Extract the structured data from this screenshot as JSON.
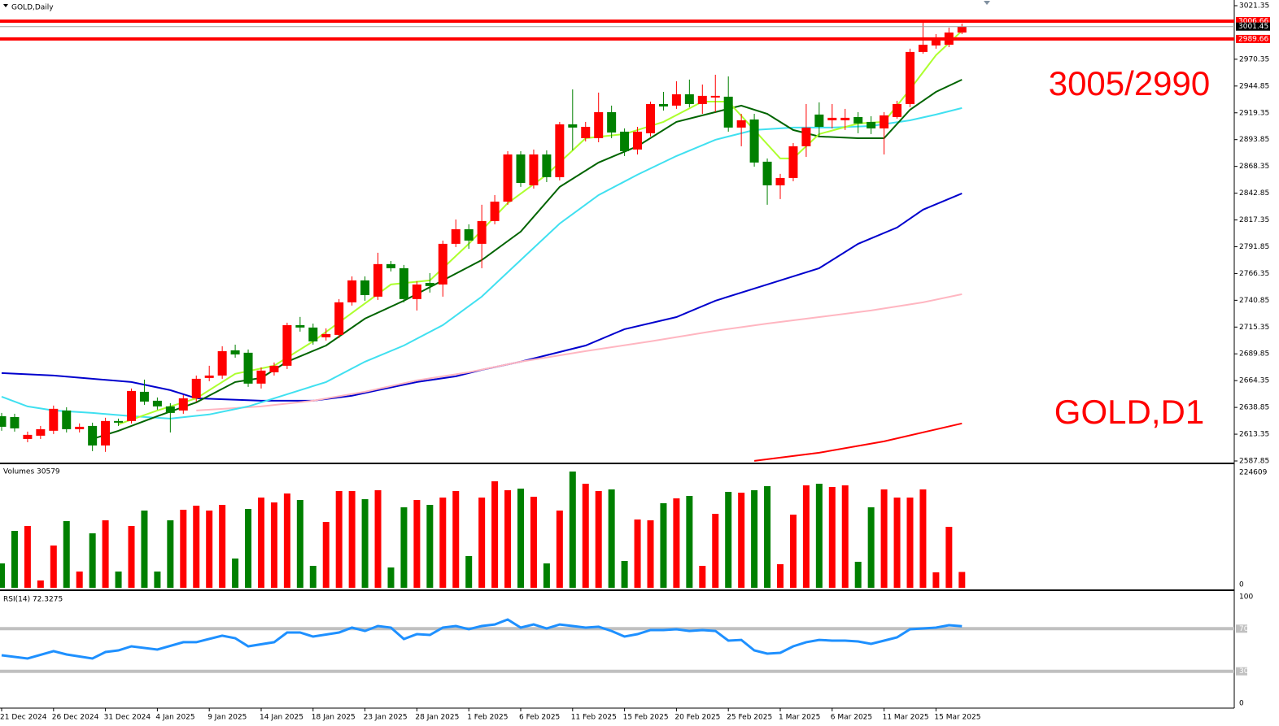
{
  "chart_data": [
    {
      "type": "candlestick",
      "title": "GOLD,Daily",
      "categories": [
        "21 Dec 2024",
        null,
        null,
        null,
        "26 Dec 2024",
        null,
        null,
        null,
        "31 Dec 2024",
        null,
        null,
        null,
        "4 Jan 2025",
        null,
        null,
        null,
        "9 Jan 2025",
        null,
        null,
        null,
        "14 Jan 2025",
        null,
        null,
        null,
        "18 Jan 2025",
        null,
        null,
        null,
        "23 Jan 2025",
        null,
        null,
        null,
        "28 Jan 2025",
        null,
        null,
        null,
        "1 Feb 2025",
        null,
        null,
        null,
        "6 Feb 2025",
        null,
        null,
        null,
        "11 Feb 2025",
        null,
        null,
        null,
        "15 Feb 2025",
        null,
        null,
        null,
        "20 Feb 2025",
        null,
        null,
        null,
        "25 Feb 2025",
        null,
        null,
        null,
        "1 Mar 2025",
        null,
        null,
        null,
        "6 Mar 2025",
        null,
        null,
        null,
        "11 Mar 2025",
        null,
        null,
        null,
        "15 Mar 2025",
        null,
        null
      ],
      "open": [
        2630.5,
        2629.7,
        2608.8,
        2611.9,
        2616.6,
        2635.9,
        2618.1,
        2621.2,
        2602.6,
        2625.9,
        2625.9,
        2653.7,
        2645.2,
        2639.8,
        2635.9,
        2647.5,
        2666.9,
        2669.2,
        2693.2,
        2690.9,
        2661.5,
        2672.3,
        2678.5,
        2717.2,
        2714.9,
        2705.6,
        2707.9,
        2738.9,
        2759.8,
        2744.3,
        2775.3,
        2771.4,
        2742.0,
        2757.4,
        2755.9,
        2794.6,
        2808.5,
        2794.6,
        2816.3,
        2834.8,
        2879.7,
        2850.3,
        2879.7,
        2858.1,
        2908.4,
        2895.2,
        2895.2,
        2920.0,
        2901.4,
        2884.4,
        2899.9,
        2927.7,
        2926.2,
        2937.0,
        2927.7,
        2933.9,
        2934.7,
        2905.3,
        2913.0,
        2872.8,
        2850.3,
        2857.3,
        2887.5,
        2917.7,
        2912.2,
        2912.2,
        2915.3,
        2910.7,
        2904.5,
        2915.3,
        2927.7,
        2977.3,
        2983.5,
        2984.2,
        2995.8
      ],
      "high": [
        2633.6,
        2632.8,
        2615.8,
        2621.2,
        2640.6,
        2639.0,
        2623.6,
        2624.3,
        2629.0,
        2628.2,
        2656.8,
        2665.3,
        2648.3,
        2642.9,
        2650.6,
        2669.2,
        2678.5,
        2697.1,
        2698.6,
        2694.0,
        2677.0,
        2681.6,
        2719.5,
        2725.0,
        2718.7,
        2714.1,
        2742.0,
        2763.6,
        2763.6,
        2786.1,
        2778.3,
        2774.5,
        2759.0,
        2766.7,
        2797.7,
        2817.8,
        2813.2,
        2831.8,
        2841.0,
        2882.8,
        2882.8,
        2884.4,
        2883.6,
        2910.7,
        2941.7,
        2910.7,
        2938.6,
        2926.2,
        2904.5,
        2906.0,
        2930.0,
        2939.3,
        2949.4,
        2951.0,
        2946.3,
        2955.6,
        2954.0,
        2918.4,
        2918.4,
        2875.9,
        2861.2,
        2890.6,
        2927.7,
        2929.3,
        2927.7,
        2923.1,
        2920.0,
        2916.1,
        2920.0,
        2930.8,
        2980.4,
        3005.1,
        2994.3,
        3000.5,
        3004.4
      ],
      "low": [
        2616.6,
        2615.8,
        2605.7,
        2608.8,
        2613.5,
        2615.0,
        2615.0,
        2597.2,
        2596.5,
        2621.2,
        2623.6,
        2641.3,
        2636.7,
        2615.0,
        2632.8,
        2644.4,
        2663.8,
        2666.1,
        2686.2,
        2658.4,
        2656.8,
        2669.2,
        2675.4,
        2711.0,
        2698.6,
        2702.5,
        2704.8,
        2735.8,
        2740.4,
        2741.2,
        2768.3,
        2738.9,
        2731.1,
        2748.2,
        2744.3,
        2791.5,
        2789.9,
        2771.4,
        2813.2,
        2831.8,
        2848.8,
        2847.2,
        2853.4,
        2855.0,
        2883.6,
        2892.1,
        2891.3,
        2895.2,
        2878.2,
        2879.7,
        2896.8,
        2921.5,
        2923.1,
        2924.6,
        2918.4,
        2920.0,
        2901.4,
        2887.5,
        2868.1,
        2831.8,
        2837.2,
        2854.2,
        2877.4,
        2896.8,
        2904.5,
        2903.0,
        2899.9,
        2899.1,
        2879.7,
        2913.8,
        2924.6,
        2975.7,
        2980.4,
        2981.9,
        2994.3
      ],
      "close": [
        2620.4,
        2618.9,
        2612.7,
        2618.1,
        2637.5,
        2618.1,
        2620.4,
        2602.6,
        2625.9,
        2624.3,
        2654.5,
        2644.4,
        2639.8,
        2633.6,
        2647.5,
        2666.1,
        2669.2,
        2692.4,
        2689.3,
        2661.5,
        2673.9,
        2678.5,
        2717.2,
        2714.9,
        2701.7,
        2708.7,
        2738.9,
        2759.8,
        2745.8,
        2775.3,
        2771.4,
        2742.0,
        2755.9,
        2754.4,
        2794.6,
        2808.5,
        2797.7,
        2816.3,
        2834.8,
        2879.7,
        2852.6,
        2879.7,
        2858.1,
        2908.4,
        2905.3,
        2906.0,
        2920.0,
        2900.6,
        2882.8,
        2901.4,
        2927.7,
        2925.4,
        2937.0,
        2927.7,
        2935.5,
        2935.5,
        2905.3,
        2912.2,
        2872.0,
        2850.3,
        2857.3,
        2887.5,
        2905.3,
        2906.0,
        2914.6,
        2914.6,
        2909.2,
        2904.5,
        2916.9,
        2927.7,
        2977.3,
        2984.2,
        2989.6,
        2995.8,
        3001.45
      ],
      "up_color": "#ff0000",
      "down_color": "#008000",
      "ylim": [
        2587.85,
        3021.35
      ],
      "yticks": [
        2587.85,
        2613.35,
        2638.85,
        2664.35,
        2689.85,
        2715.35,
        2740.85,
        2766.35,
        2791.85,
        2817.35,
        2842.85,
        2868.35,
        2893.85,
        2919.35,
        2944.85,
        2970.35,
        3021.35
      ],
      "series": [
        {
          "color": "#0000cd",
          "x": [
            0,
            4,
            10,
            13,
            15,
            20,
            24,
            27,
            29,
            32,
            35,
            37,
            40,
            45,
            48,
            52,
            55,
            59,
            63,
            66,
            69,
            71,
            74
          ],
          "values": [
            2671.5,
            2669.2,
            2663.0,
            2655.3,
            2647.5,
            2645.2,
            2645.2,
            2649.9,
            2655.3,
            2663.0,
            2668.4,
            2674.6,
            2682.4,
            2697.8,
            2713.3,
            2724.9,
            2740.4,
            2755.9,
            2771.4,
            2794.6,
            2810.1,
            2827.1,
            2842.6
          ]
        },
        {
          "color": "#ffb6c1",
          "x": [
            15,
            20,
            24,
            28,
            32,
            36,
            40,
            45,
            50,
            55,
            59,
            63,
            67,
            71,
            74
          ],
          "values": [
            2635.9,
            2639.8,
            2645.2,
            2653.7,
            2664.6,
            2672.3,
            2682.4,
            2692.4,
            2701.7,
            2711.8,
            2718.7,
            2724.9,
            2731.1,
            2738.9,
            2746.6
          ]
        },
        {
          "color": "#ff0000",
          "x": [
            58,
            63,
            68,
            74
          ],
          "values": [
            2587.9,
            2595.7,
            2606.5,
            2623.6
          ]
        },
        {
          "color": "#40e0f0",
          "x": [
            0,
            2,
            4,
            7,
            10,
            13,
            16,
            19,
            22,
            25,
            28,
            31,
            34,
            37,
            40,
            43,
            46,
            49,
            52,
            55,
            58,
            61,
            64,
            67,
            70,
            72,
            74
          ],
          "values": [
            2649.1,
            2639.8,
            2635.9,
            2633.6,
            2630.5,
            2628.2,
            2632.1,
            2639.8,
            2651.4,
            2663.0,
            2682.4,
            2697.8,
            2717.2,
            2744.3,
            2779.1,
            2813.9,
            2841.0,
            2860.4,
            2878.2,
            2893.7,
            2903.0,
            2905.3,
            2905.3,
            2906.8,
            2912.2,
            2917.7,
            2923.9
          ]
        },
        {
          "color": "#006400",
          "x": [
            7,
            9,
            12,
            15,
            18,
            20,
            22,
            25,
            28,
            31,
            34,
            37,
            40,
            43,
            46,
            49,
            52,
            55,
            57,
            59,
            61,
            63,
            66,
            68,
            70,
            72,
            74
          ],
          "values": [
            2608.8,
            2616.6,
            2630.5,
            2643.7,
            2663.0,
            2666.9,
            2682.4,
            2697.8,
            2723.4,
            2740.4,
            2759.8,
            2779.1,
            2806.2,
            2848.8,
            2872.0,
            2887.5,
            2910.7,
            2920.0,
            2926.2,
            2918.4,
            2903.0,
            2896.8,
            2895.2,
            2895.2,
            2922.3,
            2939.3,
            2950.9
          ]
        },
        {
          "color": "#adff2f",
          "x": [
            9,
            12,
            15,
            18,
            21,
            24,
            27,
            30,
            33,
            36,
            39,
            42,
            45,
            48,
            51,
            54,
            56,
            58,
            60,
            61,
            63,
            66,
            68,
            70,
            72,
            74
          ],
          "values": [
            2622.8,
            2635.9,
            2647.5,
            2670.8,
            2678.5,
            2701.7,
            2728.8,
            2755.9,
            2759.8,
            2794.6,
            2833.3,
            2860.4,
            2895.2,
            2899.1,
            2910.7,
            2930.0,
            2930.0,
            2903.0,
            2875.9,
            2875.9,
            2899.1,
            2909.2,
            2910.7,
            2941.7,
            2974.2,
            2997.4
          ]
        }
      ],
      "levels": [
        {
          "value": 3006.66,
          "color": "#ff0000",
          "thick": true
        },
        {
          "value": 3001.45,
          "color": "#000000",
          "thick": false
        },
        {
          "value": 2989.66,
          "color": "#ff0000",
          "thick": true
        }
      ],
      "annotations": [
        {
          "text": "3005/2990",
          "color": "#ff0000"
        },
        {
          "text": "GOLD,D1",
          "color": "#ff0000"
        }
      ]
    },
    {
      "type": "bar",
      "title": "Volumes 30579",
      "values": [
        47121,
        109949,
        119373,
        14136,
        81676,
        128797,
        31414,
        105237,
        130368,
        31414,
        119373,
        149217,
        31414,
        130368,
        150787,
        158641,
        149217,
        160211,
        56545,
        152358,
        174348,
        164924,
        182201,
        169636,
        42409,
        127227,
        186913,
        186913,
        171206,
        188484,
        39268,
        155499,
        169636,
        160211,
        174348,
        186913,
        61257,
        174348,
        205762,
        188484,
        191625,
        175918,
        47121,
        149217,
        224609,
        201050,
        186913,
        190055,
        51833,
        131939,
        130368,
        163353,
        172777,
        177489,
        42409,
        142934,
        185343,
        183782,
        188484,
        196338,
        45550,
        141363,
        197908,
        201050,
        194767,
        197908,
        50262,
        155499,
        190055,
        174348,
        174348,
        190055,
        29843,
        117803,
        30579
      ],
      "ylim": [
        0,
        224609
      ],
      "yticks": [
        0,
        224609
      ]
    },
    {
      "type": "line",
      "title": "RSI(14) 72.3275",
      "color": "#1e90ff",
      "x": [
        0,
        2,
        4,
        5,
        7,
        8,
        9,
        10,
        12,
        14,
        15,
        17,
        18,
        19,
        21,
        22,
        23,
        24,
        26,
        27,
        28,
        29,
        30,
        31,
        32,
        33,
        34,
        35,
        36,
        37,
        38,
        39,
        40,
        41,
        42,
        43,
        44,
        45,
        46,
        47,
        48,
        49,
        50,
        51,
        52,
        53,
        54,
        55,
        56,
        57,
        58,
        59,
        60,
        61,
        62,
        63,
        64,
        65,
        66,
        67,
        68,
        69,
        70,
        71,
        72,
        73,
        74
      ],
      "values": [
        45.0,
        42.0,
        48.9,
        45.8,
        42.0,
        48.1,
        49.6,
        53.4,
        50.4,
        57.3,
        57.3,
        63.4,
        61.1,
        53.4,
        57.3,
        66.4,
        66.4,
        62.6,
        66.4,
        71.0,
        67.9,
        72.5,
        71.0,
        60.3,
        64.9,
        64.1,
        71.0,
        72.5,
        69.5,
        72.5,
        74.0,
        78.6,
        71.0,
        74.0,
        70.2,
        74.0,
        72.5,
        71.0,
        71.8,
        67.9,
        62.6,
        64.9,
        68.7,
        68.7,
        69.5,
        67.9,
        68.7,
        67.9,
        58.8,
        59.5,
        49.6,
        46.6,
        47.3,
        53.4,
        57.3,
        59.5,
        58.8,
        58.8,
        58.0,
        55.7,
        58.8,
        61.8,
        69.5,
        70.2,
        71.0,
        73.3,
        72.3275
      ],
      "ylim": [
        0,
        100
      ],
      "yticks": [
        0,
        30,
        70,
        100
      ],
      "levels": [
        30,
        70
      ]
    }
  ]
}
